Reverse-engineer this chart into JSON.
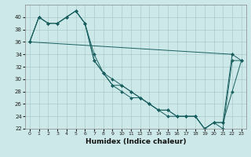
{
  "xlabel": "Humidex (Indice chaleur)",
  "background_color": "#cce8e8",
  "grid_color": "#aacccc",
  "line_color": "#1a6060",
  "xlim": [
    -0.5,
    23.5
  ],
  "ylim": [
    22,
    42
  ],
  "xticks": [
    0,
    1,
    2,
    3,
    4,
    5,
    6,
    7,
    8,
    9,
    10,
    11,
    12,
    13,
    14,
    15,
    16,
    17,
    18,
    19,
    20,
    21,
    22,
    23
  ],
  "yticks": [
    22,
    24,
    26,
    28,
    30,
    32,
    34,
    36,
    38,
    40
  ],
  "lines": [
    {
      "x": [
        0,
        1,
        2,
        3,
        4,
        5,
        6,
        7,
        8,
        9,
        10,
        11,
        12,
        13,
        14,
        15,
        16,
        17,
        18,
        19,
        20,
        21,
        22,
        23
      ],
      "y": [
        36,
        40,
        39,
        39,
        40,
        41,
        39,
        33,
        31,
        30,
        29,
        28,
        27,
        26,
        25,
        25,
        24,
        24,
        24,
        22,
        23,
        23,
        28,
        33
      ]
    },
    {
      "x": [
        0,
        1,
        2,
        3,
        4,
        5,
        6,
        7,
        8,
        9,
        10,
        11,
        12,
        13,
        14,
        15,
        16,
        17,
        18,
        19,
        20,
        21,
        22
      ],
      "y": [
        36,
        40,
        39,
        39,
        40,
        41,
        39,
        34,
        31,
        29,
        29,
        28,
        27,
        26,
        25,
        25,
        24,
        24,
        24,
        22,
        23,
        23,
        34
      ]
    },
    {
      "x": [
        0,
        1,
        2,
        3,
        4,
        5,
        6,
        7,
        8,
        9,
        10,
        11,
        12,
        13,
        14,
        15,
        16,
        17,
        18,
        19,
        20,
        21,
        22,
        23
      ],
      "y": [
        36,
        40,
        39,
        39,
        40,
        41,
        39,
        33,
        31,
        29,
        28,
        27,
        27,
        26,
        25,
        24,
        24,
        24,
        24,
        22,
        23,
        22,
        33,
        33
      ]
    },
    {
      "x": [
        0,
        22,
        23
      ],
      "y": [
        36,
        34,
        33
      ]
    }
  ]
}
